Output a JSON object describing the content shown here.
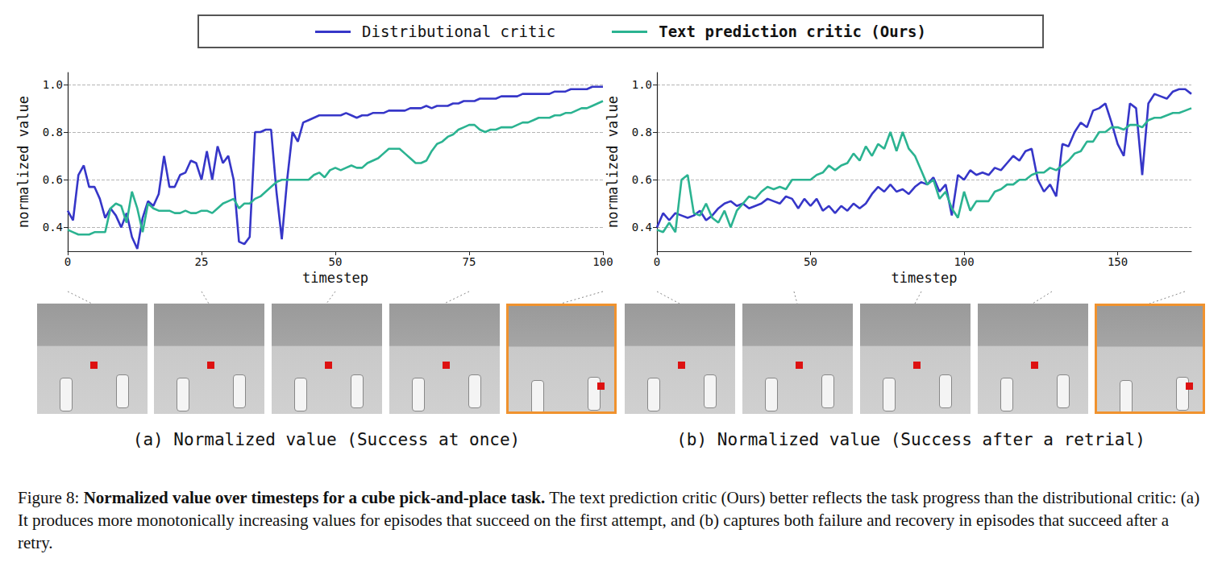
{
  "chart_data": [
    {
      "type": "line",
      "title": "(a) Normalized value (Success at once)",
      "x_label": "timestep",
      "y_label": "normalized value",
      "xlim": [
        0,
        100
      ],
      "xticks": [
        0,
        25,
        50,
        75,
        100
      ],
      "ylim": [
        0.3,
        1.05
      ],
      "yticks": [
        0.4,
        0.6,
        0.8,
        {
          "value": 1,
          "label": "1.0"
        }
      ],
      "grid": true,
      "legend": "top",
      "x": [
        0,
        1,
        2,
        3,
        4,
        5,
        6,
        7,
        8,
        9,
        10,
        11,
        12,
        13,
        14,
        15,
        16,
        17,
        18,
        19,
        20,
        21,
        22,
        23,
        24,
        25,
        26,
        27,
        28,
        29,
        30,
        31,
        32,
        33,
        34,
        35,
        36,
        37,
        38,
        39,
        40,
        41,
        42,
        43,
        44,
        45,
        46,
        47,
        48,
        49,
        50,
        51,
        52,
        53,
        54,
        55,
        56,
        57,
        58,
        59,
        60,
        61,
        62,
        63,
        64,
        65,
        66,
        67,
        68,
        69,
        70,
        71,
        72,
        73,
        74,
        75,
        76,
        77,
        78,
        79,
        80,
        81,
        82,
        83,
        84,
        85,
        86,
        87,
        88,
        89,
        90,
        91,
        92,
        93,
        94,
        95,
        96,
        97,
        98,
        99,
        100
      ],
      "series": [
        {
          "name": "Distributional critic",
          "color": "#3636c8",
          "values": [
            0.47,
            0.43,
            0.62,
            0.66,
            0.57,
            0.57,
            0.52,
            0.44,
            0.48,
            0.45,
            0.4,
            0.46,
            0.36,
            0.31,
            0.44,
            0.51,
            0.49,
            0.54,
            0.7,
            0.57,
            0.57,
            0.62,
            0.63,
            0.68,
            0.67,
            0.6,
            0.72,
            0.6,
            0.74,
            0.67,
            0.7,
            0.6,
            0.34,
            0.33,
            0.36,
            0.8,
            0.8,
            0.81,
            0.81,
            0.55,
            0.35,
            0.6,
            0.8,
            0.76,
            0.84,
            0.85,
            0.86,
            0.87,
            0.87,
            0.87,
            0.87,
            0.87,
            0.88,
            0.87,
            0.86,
            0.87,
            0.87,
            0.88,
            0.88,
            0.88,
            0.89,
            0.89,
            0.89,
            0.89,
            0.9,
            0.9,
            0.9,
            0.91,
            0.9,
            0.91,
            0.91,
            0.91,
            0.92,
            0.92,
            0.93,
            0.93,
            0.93,
            0.94,
            0.94,
            0.94,
            0.94,
            0.95,
            0.95,
            0.95,
            0.95,
            0.96,
            0.96,
            0.96,
            0.96,
            0.96,
            0.96,
            0.97,
            0.97,
            0.97,
            0.98,
            0.98,
            0.98,
            0.98,
            0.99,
            0.99,
            0.99
          ]
        },
        {
          "name": "Text prediction critic (Ours)",
          "color": "#2bb391",
          "values": [
            0.39,
            0.38,
            0.37,
            0.37,
            0.37,
            0.38,
            0.38,
            0.38,
            0.48,
            0.5,
            0.49,
            0.42,
            0.55,
            0.48,
            0.38,
            0.5,
            0.48,
            0.47,
            0.47,
            0.47,
            0.46,
            0.46,
            0.47,
            0.46,
            0.46,
            0.47,
            0.47,
            0.46,
            0.48,
            0.5,
            0.51,
            0.52,
            0.48,
            0.5,
            0.5,
            0.52,
            0.53,
            0.55,
            0.57,
            0.59,
            0.6,
            0.6,
            0.6,
            0.6,
            0.6,
            0.6,
            0.62,
            0.63,
            0.61,
            0.64,
            0.65,
            0.64,
            0.65,
            0.66,
            0.65,
            0.65,
            0.67,
            0.68,
            0.69,
            0.71,
            0.73,
            0.73,
            0.73,
            0.71,
            0.69,
            0.67,
            0.67,
            0.68,
            0.72,
            0.75,
            0.76,
            0.78,
            0.79,
            0.81,
            0.82,
            0.83,
            0.83,
            0.81,
            0.8,
            0.81,
            0.81,
            0.82,
            0.82,
            0.82,
            0.83,
            0.84,
            0.84,
            0.85,
            0.86,
            0.86,
            0.86,
            0.87,
            0.87,
            0.88,
            0.88,
            0.89,
            0.9,
            0.9,
            0.91,
            0.92,
            0.93
          ]
        }
      ]
    },
    {
      "type": "line",
      "title": "(b) Normalized value (Success after a retrial)",
      "x_label": "timestep",
      "y_label": "normalized value",
      "xlim": [
        0,
        174
      ],
      "xticks": [
        0,
        50,
        100,
        150
      ],
      "ylim": [
        0.3,
        1.05
      ],
      "yticks": [
        0.4,
        0.6,
        0.8,
        {
          "value": 1,
          "label": "1.0"
        }
      ],
      "grid": true,
      "x": [
        0,
        2,
        4,
        6,
        8,
        10,
        12,
        14,
        16,
        18,
        20,
        22,
        24,
        26,
        28,
        30,
        32,
        34,
        36,
        38,
        40,
        42,
        44,
        46,
        48,
        50,
        52,
        54,
        56,
        58,
        60,
        62,
        64,
        66,
        68,
        70,
        72,
        74,
        76,
        78,
        80,
        82,
        84,
        86,
        88,
        90,
        92,
        94,
        96,
        98,
        100,
        102,
        104,
        106,
        108,
        110,
        112,
        114,
        116,
        118,
        120,
        122,
        124,
        126,
        128,
        130,
        132,
        134,
        136,
        138,
        140,
        142,
        144,
        146,
        148,
        150,
        152,
        154,
        156,
        158,
        160,
        162,
        164,
        166,
        168,
        170,
        172,
        174
      ],
      "series": [
        {
          "name": "Distributional critic",
          "color": "#3636c8",
          "values": [
            0.4,
            0.46,
            0.43,
            0.46,
            0.45,
            0.44,
            0.45,
            0.47,
            0.43,
            0.45,
            0.48,
            0.5,
            0.51,
            0.49,
            0.5,
            0.48,
            0.49,
            0.5,
            0.52,
            0.51,
            0.5,
            0.53,
            0.52,
            0.48,
            0.52,
            0.49,
            0.52,
            0.47,
            0.49,
            0.46,
            0.49,
            0.47,
            0.5,
            0.48,
            0.5,
            0.54,
            0.57,
            0.55,
            0.58,
            0.55,
            0.56,
            0.54,
            0.57,
            0.59,
            0.58,
            0.61,
            0.55,
            0.58,
            0.45,
            0.62,
            0.6,
            0.64,
            0.62,
            0.63,
            0.62,
            0.65,
            0.64,
            0.67,
            0.7,
            0.68,
            0.72,
            0.73,
            0.6,
            0.55,
            0.58,
            0.53,
            0.75,
            0.74,
            0.8,
            0.84,
            0.82,
            0.89,
            0.9,
            0.92,
            0.84,
            0.75,
            0.7,
            0.92,
            0.9,
            0.62,
            0.92,
            0.96,
            0.95,
            0.94,
            0.97,
            0.98,
            0.98,
            0.96
          ]
        },
        {
          "name": "Text prediction critic (Ours)",
          "color": "#2bb391",
          "values": [
            0.39,
            0.38,
            0.42,
            0.38,
            0.6,
            0.62,
            0.46,
            0.45,
            0.5,
            0.44,
            0.42,
            0.47,
            0.4,
            0.47,
            0.5,
            0.53,
            0.52,
            0.55,
            0.57,
            0.56,
            0.57,
            0.56,
            0.6,
            0.6,
            0.6,
            0.6,
            0.62,
            0.63,
            0.66,
            0.64,
            0.66,
            0.67,
            0.71,
            0.68,
            0.74,
            0.7,
            0.75,
            0.73,
            0.8,
            0.72,
            0.8,
            0.73,
            0.7,
            0.64,
            0.58,
            0.6,
            0.52,
            0.55,
            0.48,
            0.44,
            0.55,
            0.47,
            0.51,
            0.51,
            0.51,
            0.55,
            0.56,
            0.58,
            0.58,
            0.6,
            0.6,
            0.62,
            0.63,
            0.63,
            0.65,
            0.64,
            0.66,
            0.68,
            0.71,
            0.72,
            0.76,
            0.76,
            0.8,
            0.8,
            0.82,
            0.82,
            0.81,
            0.83,
            0.83,
            0.82,
            0.85,
            0.86,
            0.86,
            0.87,
            0.88,
            0.88,
            0.89,
            0.9
          ]
        }
      ]
    }
  ],
  "caption": {
    "label": "Figure 8:",
    "title": "Normalized value over timesteps for a cube pick-and-place task.",
    "text": "The text prediction critic (Ours) better reflects the task progress than the distributional critic: (a) It produces more monotonically increasing values for episodes that succeed on the first attempt, and (b) captures both failure and recovery in episodes that succeed after a retry."
  }
}
